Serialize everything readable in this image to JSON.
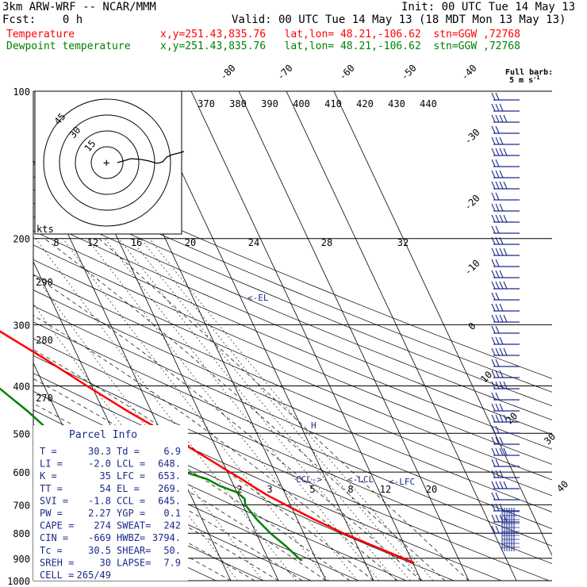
{
  "header": {
    "model": "3km ARW-WRF -- NCAR/MMM",
    "init": "Init: 00 UTC Tue 14 May 13",
    "fcst": "Fcst:    0 h",
    "valid": "Valid: 00 UTC Tue 14 May 13 (18 MDT Mon 13 May 13)",
    "temp_label": "Temperature",
    "temp_loc": "x,y=251.43,835.76   lat,lon= 48.21,-106.62  stn=GGW ,72768",
    "dew_label": "Dewpoint temperature",
    "dew_loc": "x,y=251.43,835.76   lat,lon= 48.21,-106.62  stn=GGW ,72768"
  },
  "colors": {
    "temperature": "#ff0000",
    "dewpoint": "#008000",
    "barbs": "#1a2a8a",
    "parcel_text": "#1a2a8a"
  },
  "barb_legend": {
    "title": "Full barb:",
    "value": "5 m s",
    "exp": "-1"
  },
  "hodograph": {
    "unit": "kts",
    "ring_labels": [
      "15",
      "30",
      "45"
    ],
    "center_mark": "+"
  },
  "parcel_info": {
    "title": "Parcel Info",
    "rows": [
      {
        "l1": "T  =",
        "v1": "30.3",
        "l2": "Td =",
        "v2": "6.9"
      },
      {
        "l1": "LI =",
        "v1": "-2.0",
        "l2": "LCL =",
        "v2": "648."
      },
      {
        "l1": "K  =",
        "v1": "35",
        "l2": "LFC =",
        "v2": "653."
      },
      {
        "l1": "TT =",
        "v1": "54",
        "l2": "EL =",
        "v2": "269."
      },
      {
        "l1": "SVI =",
        "v1": "-1.8",
        "l2": "CCL =",
        "v2": "645."
      },
      {
        "l1": "PW =",
        "v1": "2.27",
        "l2": "YGP =",
        "v2": "0.1"
      },
      {
        "l1": "CAPE =",
        "v1": "274",
        "l2": "SWEAT=",
        "v2": "242"
      },
      {
        "l1": "CIN =",
        "v1": "-669",
        "l2": "HWBZ=",
        "v2": "3794."
      },
      {
        "l1": "Tc =",
        "v1": "30.5",
        "l2": "SHEAR=",
        "v2": "50."
      },
      {
        "l1": "SREH =",
        "v1": "30",
        "l2": "LAPSE=",
        "v2": "7.9"
      },
      {
        "l1": "CELL =",
        "v1": "265/49",
        "l2": "",
        "v2": ""
      }
    ]
  },
  "levels": {
    "labels": [
      "EL",
      "LCL",
      "LFC",
      "CCL"
    ]
  },
  "chart_data": {
    "type": "line",
    "title": "",
    "xlabel": "",
    "ylabel": "",
    "pressure_ticks": [
      100,
      200,
      300,
      400,
      500,
      600,
      700,
      800,
      900,
      1000
    ],
    "isotherm_labels": [
      "-80",
      "-70",
      "-60",
      "-50",
      "-40",
      "-30",
      "-20",
      "-10",
      "0",
      "10",
      "20",
      "30",
      "40"
    ],
    "theta_labels": [
      "370",
      "380",
      "390",
      "400",
      "410",
      "420",
      "430",
      "440"
    ],
    "theta_left_labels": [
      "290",
      "280",
      "270"
    ],
    "mixing_ratio_upper": [
      "8",
      "12",
      "16",
      "20",
      "24",
      "28",
      "32"
    ],
    "mixing_ratio_lower": [
      "2",
      "3",
      "5",
      "8",
      "12",
      "20"
    ],
    "series": [
      {
        "name": "Temperature",
        "p": [
          920,
          900,
          850,
          800,
          750,
          700,
          670,
          640,
          620,
          600,
          550,
          500,
          450,
          400,
          350,
          300,
          250,
          200,
          175,
          160,
          150,
          140,
          120,
          100
        ],
        "values": [
          30.3,
          28.5,
          23.5,
          18.3,
          13.6,
          9.0,
          6.2,
          3.8,
          2.3,
          0.5,
          -4.0,
          -9.0,
          -15.0,
          -21.0,
          -27.5,
          -35.5,
          -45.0,
          -55.5,
          -57.0,
          -56.5,
          -58.5,
          -60.0,
          -55.5,
          -55.0
        ]
      },
      {
        "name": "Dewpoint temperature",
        "p": [
          910,
          900,
          850,
          800,
          750,
          700,
          680,
          660,
          640,
          620,
          600,
          580,
          560,
          540,
          520,
          500,
          450,
          400,
          350,
          300,
          250,
          200,
          175,
          150,
          140,
          130,
          120,
          110,
          100
        ],
        "values": [
          6.9,
          6.5,
          5.0,
          3.0,
          1.5,
          0.5,
          1.0,
          0.0,
          -3.0,
          -5.0,
          -9.0,
          -15.0,
          -22.0,
          -28.0,
          -31.0,
          -33.0,
          -36.0,
          -40.0,
          -45.0,
          -53.0,
          -59.0,
          -65.0,
          -69.0,
          -70.0,
          -70.0,
          -71.0,
          -72.0,
          -72.5,
          -73.0
        ]
      }
    ],
    "wind_barbs_approx": "column of barbs from 100 to 900 hPa"
  }
}
